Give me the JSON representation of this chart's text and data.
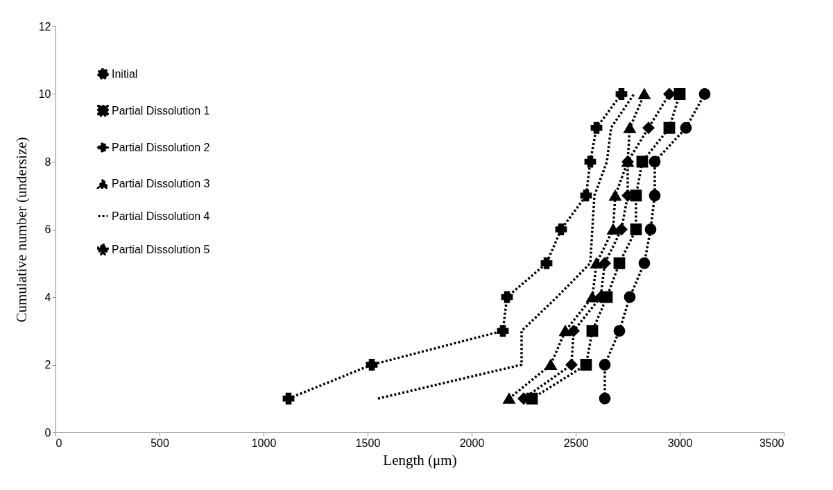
{
  "chart_data": {
    "type": "line",
    "xlabel": "Length (μm)",
    "ylabel": "Cumulative number (undersize)",
    "xlim": [
      0,
      3500
    ],
    "xticks": [
      0,
      500,
      1000,
      1500,
      2000,
      2500,
      3000,
      3500
    ],
    "ylim": [
      0,
      12
    ],
    "yticks": [
      0,
      2,
      4,
      6,
      8,
      10,
      12
    ],
    "grid": false,
    "legend": "top left",
    "line_style": "dotted",
    "series": [
      {
        "name": "Initial",
        "color": "#000000",
        "marker": "circle",
        "x": [
          2640,
          2640,
          2710,
          2760,
          2830,
          2860,
          2880,
          2880,
          3030,
          3120
        ],
        "values": [
          1,
          2,
          3,
          4,
          5,
          6,
          7,
          8,
          9,
          10
        ]
      },
      {
        "name": "Partial Dissolution 1",
        "color": "#000000",
        "marker": "square",
        "x": [
          2290,
          2550,
          2580,
          2650,
          2710,
          2790,
          2790,
          2820,
          2950,
          3000
        ],
        "values": [
          1,
          2,
          3,
          4,
          5,
          6,
          7,
          8,
          9,
          10
        ]
      },
      {
        "name": "Partial Dissolution 2",
        "color": "#000000",
        "marker": "diamond",
        "x": [
          2250,
          2480,
          2490,
          2620,
          2640,
          2720,
          2750,
          2750,
          2850,
          2950
        ],
        "values": [
          1,
          2,
          3,
          4,
          5,
          6,
          7,
          8,
          9,
          10
        ]
      },
      {
        "name": "Partial Dissolution 3",
        "color": "#000000",
        "marker": "triangle",
        "x": [
          2180,
          2380,
          2450,
          2580,
          2600,
          2680,
          2690,
          2750,
          2760,
          2830
        ],
        "values": [
          1,
          2,
          3,
          4,
          5,
          6,
          7,
          8,
          9,
          10
        ]
      },
      {
        "name": "Partial Dissolution 4",
        "color": "#000000",
        "marker": "none",
        "x": [
          1550,
          2240,
          2240,
          2410,
          2570,
          2580,
          2590,
          2650,
          2670,
          2780
        ],
        "values": [
          1,
          2,
          3,
          4,
          5,
          6,
          7,
          8,
          9,
          10
        ]
      },
      {
        "name": "Partial Dissolution 5",
        "color": "#000000",
        "marker": "cross",
        "x": [
          1120,
          1520,
          2150,
          2170,
          2360,
          2430,
          2550,
          2570,
          2600,
          2720
        ],
        "values": [
          1,
          2,
          3,
          4,
          5,
          6,
          7,
          8,
          9,
          10
        ]
      }
    ]
  }
}
